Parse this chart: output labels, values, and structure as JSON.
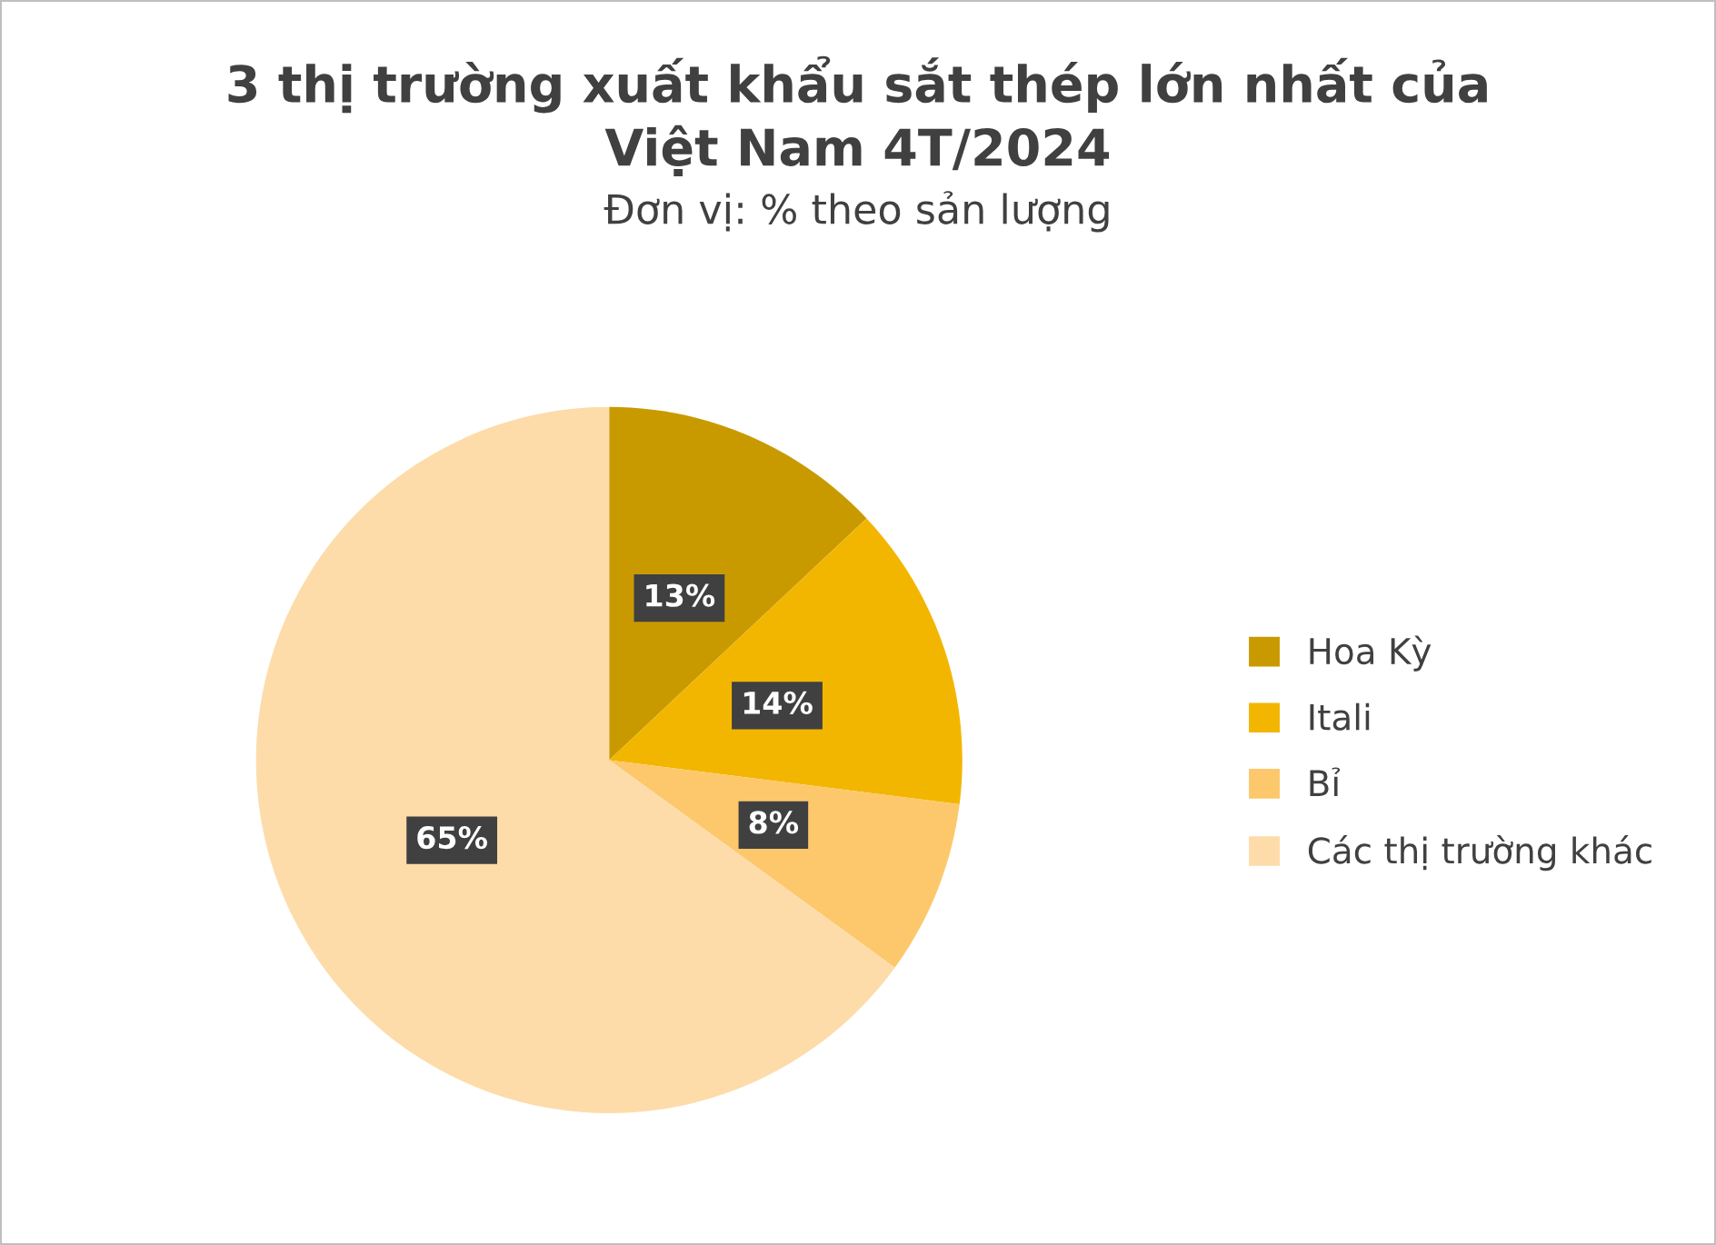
{
  "chart_data": {
    "type": "pie",
    "title": "3 thị trường xuất khẩu sắt thép lớn nhất của\nViệt Nam 4T/2024",
    "subtitle": "Đơn vị: % theo sản lượng",
    "categories": [
      "Hoa Kỳ",
      "Itali",
      "Bỉ",
      "Các thị trường khác"
    ],
    "values": [
      13,
      14,
      8,
      65
    ],
    "value_labels": [
      "13%",
      "14%",
      "8%",
      "65%"
    ],
    "colors": [
      "#c99a00",
      "#f2b600",
      "#fdc86c",
      "#fddcaa"
    ],
    "legend": "right"
  }
}
